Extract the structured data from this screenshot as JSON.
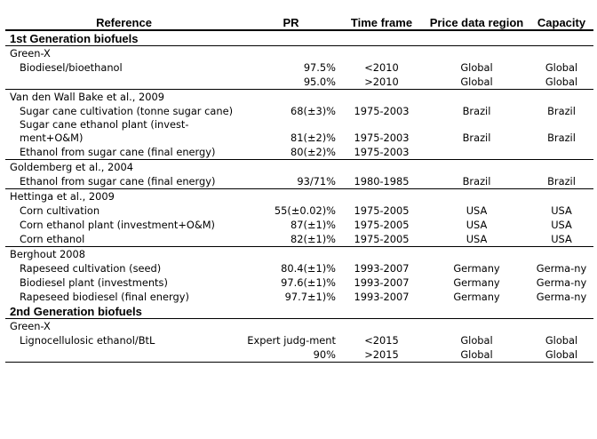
{
  "header": {
    "reference": "Reference",
    "pr": "PR",
    "time_frame": "Time frame",
    "price_region": "Price data region",
    "capacity": "Capacity"
  },
  "sections": [
    {
      "title": "1st Generation biofuels",
      "sources": [
        {
          "name": "Green-X",
          "rows": [
            {
              "item": "Biodiesel/bioethanol",
              "pr": "97.5%",
              "time": "<2010",
              "region": "Global",
              "capacity": "Global"
            },
            {
              "item": "",
              "pr": "95.0%",
              "time": ">2010",
              "region": "Global",
              "capacity": "Global"
            }
          ]
        },
        {
          "name": "Van den Wall Bake et al., 2009",
          "rows": [
            {
              "item": "Sugar cane cultivation (tonne sugar cane)",
              "pr": "68(±3)%",
              "time": "1975-2003",
              "region": "Brazil",
              "capacity": "Brazil"
            },
            {
              "item": "Sugar cane ethanol plant (invest-ment+O&M)",
              "pr": "81(±2)%",
              "time": "1975-2003",
              "region": "Brazil",
              "capacity": "Brazil"
            },
            {
              "item": "Ethanol from sugar cane (final energy)",
              "pr": "80(±2)%",
              "time": "1975-2003",
              "region": "",
              "capacity": ""
            }
          ]
        },
        {
          "name": "Goldemberg et al., 2004",
          "rows": [
            {
              "item": "Ethanol from sugar cane (final energy)",
              "pr": "93/71%",
              "time": "1980-1985",
              "region": "Brazil",
              "capacity": "Brazil"
            }
          ]
        },
        {
          "name": "Hettinga et al., 2009",
          "rows": [
            {
              "item": "Corn cultivation",
              "pr": "55(±0.02)%",
              "time": "1975-2005",
              "region": "USA",
              "capacity": "USA"
            },
            {
              "item": "Corn ethanol plant (investment+O&M)",
              "pr": "87(±1)%",
              "time": "1975-2005",
              "region": "USA",
              "capacity": "USA"
            },
            {
              "item": "Corn ethanol",
              "pr": "82(±1)%",
              "time": "1975-2005",
              "region": "USA",
              "capacity": "USA"
            }
          ]
        },
        {
          "name": "Berghout 2008",
          "rows": [
            {
              "item": "Rapeseed cultivation (seed)",
              "pr": "80.4(±1)%",
              "time": "1993-2007",
              "region": "Germany",
              "capacity": "Germa-ny"
            },
            {
              "item": "Biodiesel plant (investments)",
              "pr": "97.6(±1)%",
              "time": "1993-2007",
              "region": "Germany",
              "capacity": "Germa-ny"
            },
            {
              "item": "Rapeseed biodiesel (final energy)",
              "pr": "97.7±1)%",
              "time": "1993-2007",
              "region": "Germany",
              "capacity": "Germa-ny"
            }
          ]
        }
      ]
    },
    {
      "title": "2nd Generation biofuels",
      "sources": [
        {
          "name": "Green-X",
          "rows": [
            {
              "item": "Lignocellulosic ethanol/BtL",
              "pr": "Expert judg-ment",
              "time": "<2015",
              "region": "Global",
              "capacity": "Global"
            },
            {
              "item": "",
              "pr": "90%",
              "time": ">2015",
              "region": "Global",
              "capacity": "Global"
            }
          ]
        }
      ]
    }
  ]
}
